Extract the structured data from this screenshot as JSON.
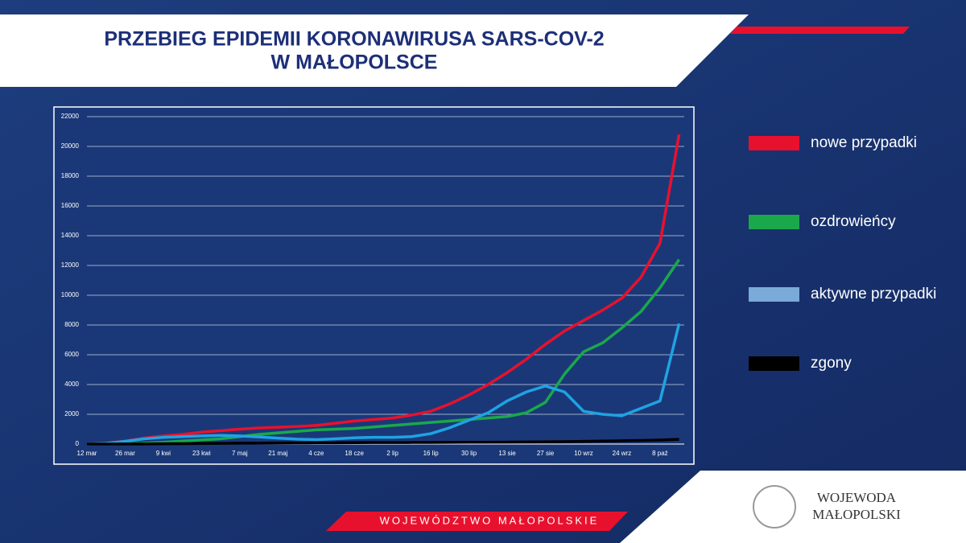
{
  "chart_data": {
    "type": "line",
    "title": [
      "PRZEBIEG EPIDEMII KORONAWIRUSA SARS-COV-2",
      "W MAŁOPOLSCE"
    ],
    "categories": [
      "12 mar",
      null,
      "26 mar",
      null,
      "9 kwi",
      null,
      "23 kwi",
      null,
      "7 maj",
      null,
      "21 maj",
      null,
      "4 cze",
      null,
      "18 cze",
      null,
      "2 lip",
      null,
      "16 lip",
      null,
      "30 lip",
      null,
      "13 sie",
      null,
      "27 sie",
      null,
      "10 wrz",
      null,
      "24 wrz",
      null,
      "8 paź",
      null
    ],
    "series": [
      {
        "name": "nowe przypadki",
        "color": "#e8112d",
        "values": [
          0,
          50,
          200,
          400,
          550,
          650,
          800,
          900,
          1000,
          1080,
          1130,
          1180,
          1250,
          1400,
          1550,
          1650,
          1750,
          1950,
          2200,
          2700,
          3300,
          4000,
          4800,
          5700,
          6700,
          7600,
          8300,
          9000,
          9800,
          11200,
          13500,
          20800
        ]
      },
      {
        "name": "ozdrowieńcy",
        "color": "#1aa84a",
        "values": [
          0,
          0,
          20,
          60,
          120,
          200,
          280,
          350,
          500,
          650,
          750,
          850,
          950,
          1000,
          1050,
          1150,
          1250,
          1350,
          1450,
          1550,
          1650,
          1750,
          1850,
          2100,
          2800,
          4700,
          6200,
          6800,
          7800,
          8900,
          10500,
          12400
        ]
      },
      {
        "name": "aktywne przypadki",
        "color": "#1fa3e3",
        "legend_color": "#7aaad8",
        "values": [
          0,
          50,
          180,
          350,
          450,
          500,
          550,
          580,
          550,
          480,
          400,
          330,
          300,
          350,
          420,
          450,
          450,
          500,
          700,
          1100,
          1600,
          2100,
          2900,
          3500,
          3900,
          3500,
          2200,
          2000,
          1900,
          2400,
          2900,
          8100
        ]
      },
      {
        "name": "zgony",
        "color": "#000000",
        "values": [
          0,
          0,
          5,
          10,
          20,
          30,
          40,
          50,
          60,
          70,
          75,
          80,
          85,
          90,
          95,
          100,
          100,
          105,
          110,
          115,
          120,
          125,
          130,
          140,
          150,
          165,
          180,
          200,
          220,
          240,
          270,
          320
        ]
      }
    ],
    "ylim": [
      0,
      22000
    ],
    "yticks": [
      0,
      2000,
      4000,
      6000,
      8000,
      10000,
      12000,
      14000,
      16000,
      18000,
      20000,
      22000
    ],
    "grid": true
  },
  "footer": {
    "region": "WOJEWÓDZTWO MAŁOPOLSKIE",
    "office": [
      "WOJEWODA",
      "MAŁOPOLSKI"
    ]
  }
}
